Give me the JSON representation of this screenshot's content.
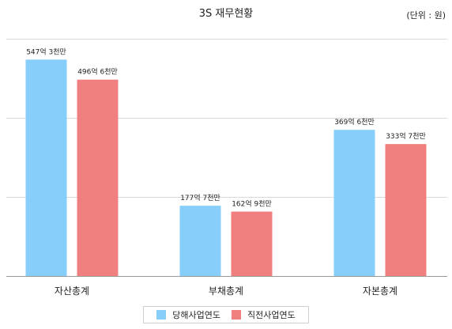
{
  "colors": {
    "current_year": "#87cefa",
    "previous_year": "#f08080",
    "grid": "#d9d9d9",
    "axis": "#999999"
  },
  "chart_data": {
    "type": "bar",
    "title": "3S 재무현황",
    "unit": "(단위 : 원)",
    "categories": [
      "자산총계",
      "부채총계",
      "자본총계"
    ],
    "series": [
      {
        "name": "당해사업연도",
        "values": [
          54730000000,
          17770000000,
          36960000000
        ],
        "labels": [
          "547억 3천만",
          "177억 7천만",
          "369억 6천만"
        ]
      },
      {
        "name": "직전사업연도",
        "values": [
          49660000000,
          16290000000,
          33370000000
        ],
        "labels": [
          "496억 6천만",
          "162억 9천만",
          "333억 7천만"
        ]
      }
    ],
    "ylim": [
      0,
      60000000000
    ],
    "grid": true,
    "y_tick_labels_shown": false,
    "legend_position": "bottom"
  }
}
